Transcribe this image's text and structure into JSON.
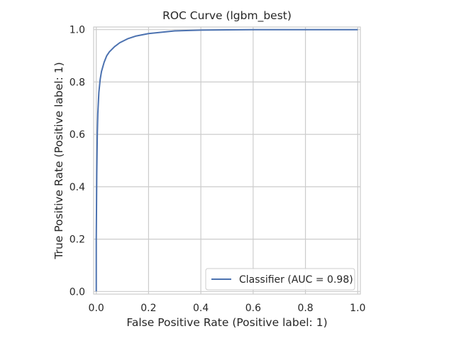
{
  "chart_data": {
    "type": "line",
    "title": "ROC Curve (lgbm_best)",
    "xlabel": "False Positive Rate (Positive label: 1)",
    "ylabel": "True Positive Rate (Positive label: 1)",
    "xlim": [
      -0.01,
      1.01
    ],
    "ylim": [
      -0.01,
      1.01
    ],
    "xticks": [
      0.0,
      0.2,
      0.4,
      0.6,
      0.8,
      1.0
    ],
    "yticks": [
      0.0,
      0.2,
      0.4,
      0.6,
      0.8,
      1.0
    ],
    "xtick_labels": [
      "0.0",
      "0.2",
      "0.4",
      "0.6",
      "0.8",
      "1.0"
    ],
    "ytick_labels": [
      "0.0",
      "0.2",
      "0.4",
      "0.6",
      "0.8",
      "1.0"
    ],
    "grid": true,
    "legend_position": "lower-right",
    "series": [
      {
        "name": "Classifier (AUC = 0.98)",
        "color": "#4c72b0",
        "x": [
          0.0,
          0.0,
          0.002,
          0.004,
          0.006,
          0.01,
          0.015,
          0.02,
          0.03,
          0.04,
          0.05,
          0.07,
          0.09,
          0.12,
          0.15,
          0.2,
          0.25,
          0.3,
          0.4,
          0.5,
          0.6,
          0.8,
          1.0
        ],
        "y": [
          0.0,
          0.2,
          0.45,
          0.6,
          0.68,
          0.76,
          0.81,
          0.84,
          0.875,
          0.9,
          0.915,
          0.935,
          0.95,
          0.965,
          0.975,
          0.985,
          0.99,
          0.995,
          0.998,
          0.999,
          1.0,
          1.0,
          1.0
        ]
      }
    ]
  }
}
